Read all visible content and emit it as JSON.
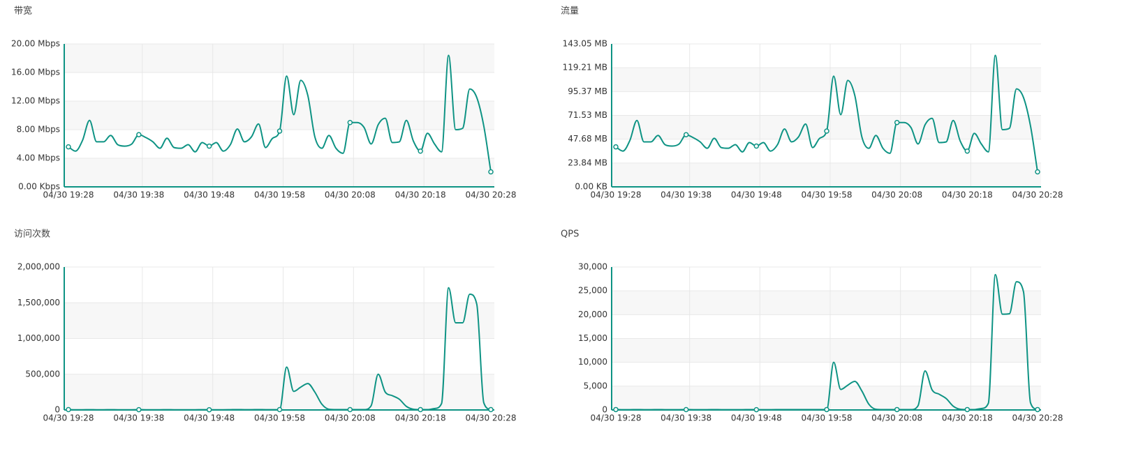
{
  "chart_data": [
    {
      "type": "line",
      "title": "带宽",
      "color": "#0e9384",
      "categories": [
        "04/30 19:28",
        null,
        null,
        null,
        null,
        null,
        null,
        null,
        null,
        null,
        "04/30 19:38",
        null,
        null,
        null,
        null,
        null,
        null,
        null,
        null,
        null,
        "04/30 19:48",
        null,
        null,
        null,
        null,
        null,
        null,
        null,
        null,
        null,
        "04/30 19:58",
        null,
        null,
        null,
        null,
        null,
        null,
        null,
        null,
        null,
        "04/30 20:08",
        null,
        null,
        null,
        null,
        null,
        null,
        null,
        null,
        null,
        "04/30 20:18",
        null,
        null,
        null,
        null,
        null,
        null,
        null,
        null,
        null,
        "04/30 20:28"
      ],
      "values": [
        5.6,
        5.0,
        6.5,
        9.3,
        6.3,
        6.3,
        7.2,
        5.9,
        5.7,
        6.0,
        7.3,
        6.9,
        6.3,
        5.4,
        6.8,
        5.5,
        5.4,
        5.9,
        4.9,
        6.2,
        5.7,
        6.2,
        5.0,
        5.9,
        8.1,
        6.3,
        7.0,
        8.8,
        5.5,
        6.8,
        7.8,
        15.5,
        10.1,
        14.9,
        12.8,
        7.0,
        5.4,
        7.2,
        5.4,
        4.7,
        9.0,
        9.0,
        8.3,
        6.0,
        8.7,
        9.6,
        6.2,
        6.3,
        9.3,
        6.4,
        5.0,
        7.5,
        6.0,
        4.9,
        18.4,
        8.0,
        8.2,
        13.7,
        12.5,
        8.5,
        2.1
      ],
      "ylim": [
        0,
        20
      ],
      "yticks": [
        {
          "value": 0,
          "label": "0.00 Kbps"
        },
        {
          "value": 4,
          "label": "4.00 Mbps"
        },
        {
          "value": 8,
          "label": "8.00 Mbps"
        },
        {
          "value": 12,
          "label": "12.00 Mbps"
        },
        {
          "value": 16,
          "label": "16.00 Mbps"
        },
        {
          "value": 20,
          "label": "20.00 Mbps"
        }
      ],
      "grid": true
    },
    {
      "type": "line",
      "title": "流量",
      "color": "#0e9384",
      "categories": [
        "04/30 19:28",
        null,
        null,
        null,
        null,
        null,
        null,
        null,
        null,
        null,
        "04/30 19:38",
        null,
        null,
        null,
        null,
        null,
        null,
        null,
        null,
        null,
        "04/30 19:48",
        null,
        null,
        null,
        null,
        null,
        null,
        null,
        null,
        null,
        "04/30 19:58",
        null,
        null,
        null,
        null,
        null,
        null,
        null,
        null,
        null,
        "04/30 20:08",
        null,
        null,
        null,
        null,
        null,
        null,
        null,
        null,
        null,
        "04/30 20:18",
        null,
        null,
        null,
        null,
        null,
        null,
        null,
        null,
        null,
        "04/30 20:28"
      ],
      "values": [
        40.0,
        35.8,
        46.5,
        66.5,
        45.0,
        45.0,
        51.5,
        42.2,
        40.8,
        42.9,
        52.2,
        49.3,
        45.0,
        38.6,
        48.6,
        39.3,
        38.6,
        42.2,
        35.0,
        44.3,
        40.8,
        44.3,
        35.8,
        42.2,
        57.9,
        45.0,
        50.1,
        62.9,
        39.3,
        48.6,
        55.8,
        110.8,
        72.2,
        106.5,
        91.5,
        50.1,
        38.6,
        51.5,
        38.6,
        33.6,
        64.4,
        64.4,
        59.3,
        42.9,
        62.2,
        68.6,
        44.3,
        45.0,
        66.5,
        45.8,
        35.8,
        53.6,
        42.9,
        35.0,
        131.6,
        57.2,
        58.6,
        98.0,
        89.4,
        60.8,
        15.0
      ],
      "ylim": [
        0,
        143.05
      ],
      "yticks": [
        {
          "value": 0,
          "label": "0.00 KB"
        },
        {
          "value": 23.84,
          "label": "23.84 MB"
        },
        {
          "value": 47.68,
          "label": "47.68 MB"
        },
        {
          "value": 71.53,
          "label": "71.53 MB"
        },
        {
          "value": 95.37,
          "label": "95.37 MB"
        },
        {
          "value": 119.21,
          "label": "119.21 MB"
        },
        {
          "value": 143.05,
          "label": "143.05 MB"
        }
      ],
      "grid": true
    },
    {
      "type": "line",
      "title": "访问次数",
      "color": "#0e9384",
      "categories": [
        "04/30 19:28",
        null,
        null,
        null,
        null,
        null,
        null,
        null,
        null,
        null,
        "04/30 19:38",
        null,
        null,
        null,
        null,
        null,
        null,
        null,
        null,
        null,
        "04/30 19:48",
        null,
        null,
        null,
        null,
        null,
        null,
        null,
        null,
        null,
        "04/30 19:58",
        null,
        null,
        null,
        null,
        null,
        null,
        null,
        null,
        null,
        "04/30 20:08",
        null,
        null,
        null,
        null,
        null,
        null,
        null,
        null,
        null,
        "04/30 20:18",
        null,
        null,
        null,
        null,
        null,
        null,
        null,
        null,
        null,
        "04/30 20:28"
      ],
      "values": [
        5000,
        3000,
        3000,
        4000,
        3000,
        3000,
        4000,
        3000,
        3000,
        3000,
        4000,
        3000,
        3000,
        3000,
        4000,
        3000,
        3000,
        3000,
        3000,
        4000,
        3000,
        3000,
        3000,
        4000,
        5000,
        4000,
        4000,
        5000,
        4000,
        4000,
        5000,
        600000,
        260000,
        320000,
        370000,
        250000,
        80000,
        10000,
        5000,
        5000,
        5000,
        5000,
        5000,
        60000,
        500000,
        250000,
        200000,
        150000,
        50000,
        10000,
        5000,
        5000,
        20000,
        90000,
        1710000,
        1220000,
        1220000,
        1620000,
        1480000,
        100000,
        5000
      ],
      "ylim": [
        0,
        2000000
      ],
      "yticks": [
        0,
        {
          "value": 500000,
          "label": "500,000"
        },
        {
          "value": 1000000,
          "label": "1,000,000"
        },
        {
          "value": 1500000,
          "label": "1,500,000"
        },
        {
          "value": 2000000,
          "label": "2,000,000"
        }
      ],
      "grid": true
    },
    {
      "type": "line",
      "title": "QPS",
      "color": "#0e9384",
      "categories": [
        "04/30 19:28",
        null,
        null,
        null,
        null,
        null,
        null,
        null,
        null,
        null,
        "04/30 19:38",
        null,
        null,
        null,
        null,
        null,
        null,
        null,
        null,
        null,
        "04/30 19:48",
        null,
        null,
        null,
        null,
        null,
        null,
        null,
        null,
        null,
        "04/30 19:58",
        null,
        null,
        null,
        null,
        null,
        null,
        null,
        null,
        null,
        "04/30 20:08",
        null,
        null,
        null,
        null,
        null,
        null,
        null,
        null,
        null,
        "04/30 20:18",
        null,
        null,
        null,
        null,
        null,
        null,
        null,
        null,
        null,
        "04/30 20:28"
      ],
      "values": [
        80,
        60,
        60,
        70,
        60,
        60,
        70,
        60,
        60,
        60,
        70,
        60,
        60,
        60,
        70,
        60,
        60,
        60,
        60,
        70,
        60,
        60,
        60,
        70,
        80,
        70,
        70,
        80,
        70,
        70,
        80,
        10000,
        4300,
        5200,
        6000,
        4000,
        1200,
        150,
        80,
        80,
        80,
        80,
        80,
        900,
        8200,
        4200,
        3300,
        2400,
        800,
        150,
        80,
        80,
        300,
        1400,
        28400,
        20100,
        20200,
        26900,
        24800,
        1500,
        80
      ],
      "ylim": [
        0,
        30000
      ],
      "yticks": [
        0,
        {
          "value": 5000,
          "label": "5,000"
        },
        {
          "value": 10000,
          "label": "10,000"
        },
        {
          "value": 15000,
          "label": "15,000"
        },
        {
          "value": 20000,
          "label": "20,000"
        },
        {
          "value": 25000,
          "label": "25,000"
        },
        {
          "value": 30000,
          "label": "30,000"
        }
      ],
      "grid": true
    }
  ]
}
